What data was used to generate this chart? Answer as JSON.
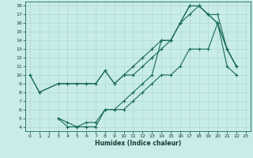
{
  "xlabel": "Humidex (Indice chaleur)",
  "bg_color": "#c8ece8",
  "grid_color": "#b0d8d0",
  "line_color": "#1a6b5a",
  "xlim": [
    -0.5,
    23.5
  ],
  "ylim": [
    3.5,
    18.5
  ],
  "xticks": [
    0,
    1,
    2,
    3,
    4,
    5,
    6,
    7,
    8,
    9,
    10,
    11,
    12,
    13,
    14,
    15,
    16,
    17,
    18,
    19,
    20,
    21,
    22,
    23
  ],
  "yticks": [
    4,
    5,
    6,
    7,
    8,
    9,
    10,
    11,
    12,
    13,
    14,
    15,
    16,
    17,
    18
  ],
  "line1_x": [
    0,
    1,
    3,
    4,
    5,
    6,
    7,
    8,
    9,
    10,
    11,
    12,
    13,
    14,
    15,
    16,
    17,
    18,
    19,
    20,
    21,
    22
  ],
  "line1_y": [
    10,
    8,
    9,
    9,
    9,
    9,
    9,
    10.5,
    9,
    10,
    11,
    12,
    13,
    14,
    14,
    16,
    18,
    18,
    17,
    17,
    13,
    11
  ],
  "line2_x": [
    0,
    1,
    3,
    4,
    5,
    6,
    7,
    8,
    9,
    10,
    11,
    12,
    13,
    14,
    15,
    16,
    17,
    18,
    19,
    20,
    21,
    22
  ],
  "line2_y": [
    10,
    8,
    9,
    9,
    9,
    9,
    9,
    10.5,
    9,
    10,
    10,
    11,
    12,
    13,
    14,
    16,
    18,
    18,
    17,
    16,
    13,
    11
  ],
  "line3_x": [
    3,
    4,
    5,
    6,
    7,
    8,
    9,
    10,
    11,
    12,
    13,
    14,
    15,
    16,
    17,
    18,
    19,
    20,
    21,
    22
  ],
  "line3_y": [
    5,
    4,
    4,
    4,
    4,
    6,
    6,
    6,
    7,
    8,
    9,
    10,
    10,
    11,
    13,
    13,
    13,
    16,
    11,
    10
  ],
  "line4_x": [
    3,
    4,
    5,
    6,
    7,
    8,
    9,
    10,
    11,
    12,
    13,
    14,
    15,
    16,
    17,
    18,
    19,
    20,
    21,
    22
  ],
  "line4_y": [
    5,
    4.5,
    4,
    4.5,
    4.5,
    6,
    6,
    7,
    8,
    9,
    10,
    14,
    14,
    16,
    17,
    18,
    17,
    16,
    13,
    11
  ]
}
